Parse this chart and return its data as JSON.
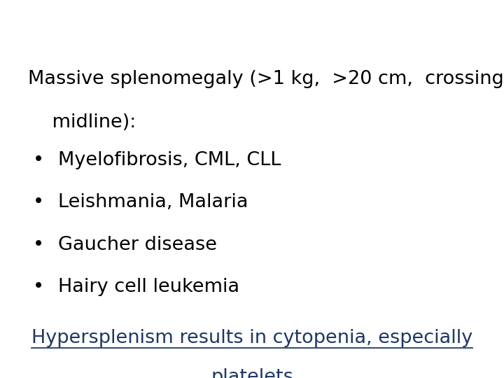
{
  "background_color": "#ffffff",
  "title_line1": "Massive splenomegaly (>1 kg,  >20 cm,  crossing",
  "title_line2": "    midline):",
  "bullets": [
    "Myelofibrosis, CML, CLL",
    "Leishmania, Malaria",
    "Gaucher disease",
    "Hairy cell leukemia"
  ],
  "footer_line1": "Hypersplenism results in cytopenia, especially",
  "footer_line2": "platelets",
  "text_color": "#000000",
  "footer_color": "#1f3864",
  "font_size": 19.5
}
